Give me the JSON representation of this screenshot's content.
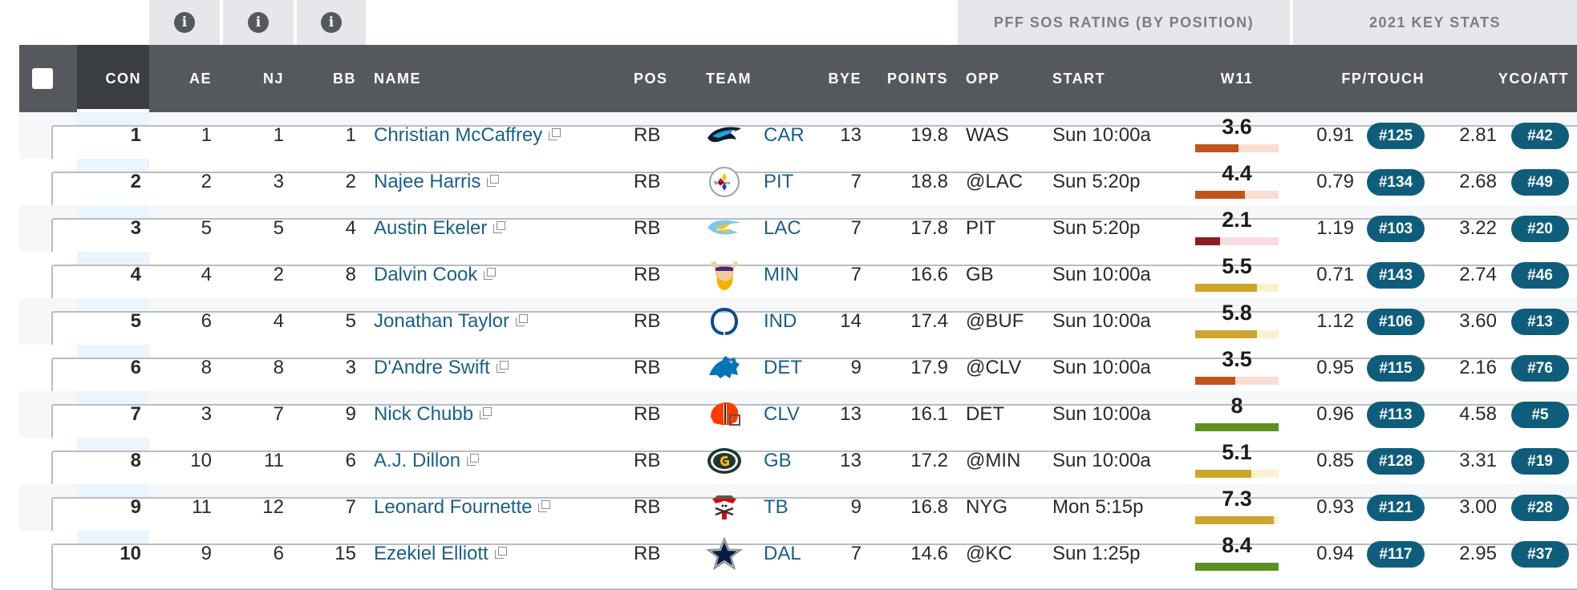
{
  "groups": {
    "sos_rating": "PFF SOS RATING (BY POSITION)",
    "key_stats": "2021 KEY STATS"
  },
  "icons": {
    "info": "i"
  },
  "headers": {
    "con": "CON",
    "ae": "AE",
    "nj": "NJ",
    "bb": "BB",
    "name": "NAME",
    "pos": "POS",
    "team": "TEAM",
    "bye": "BYE",
    "points": "POINTS",
    "opp": "OPP",
    "start": "START",
    "w11": "W11",
    "fp_touch": "FP/TOUCH",
    "yco_att": "YCO/ATT"
  },
  "colors": {
    "header_bg": "#55585d",
    "badge_bg": "#0f5d7a",
    "link": "#1b5f86",
    "sos_red": "#c0541c",
    "sos_darkred": "#8b1d24",
    "sos_yellow": "#cda52e",
    "sos_green": "#5e8f22"
  },
  "rows": [
    {
      "con": "1",
      "ae": "1",
      "nj": "1",
      "bb": "1",
      "name": "Christian McCaffrey",
      "pos": "RB",
      "team_logo": "panthers-logo",
      "team": "CAR",
      "bye": "13",
      "points": "19.8",
      "opp": "WAS",
      "start": "Sun 10:00a",
      "w11": "3.6",
      "w11_level": 0.52,
      "w11_color": "sos_red",
      "fp_touch": "0.91",
      "fp_rank": "#125",
      "yco": "2.81",
      "yco_rank": "#42"
    },
    {
      "con": "2",
      "ae": "2",
      "nj": "3",
      "bb": "2",
      "name": "Najee Harris",
      "pos": "RB",
      "team_logo": "steelers-logo",
      "team": "PIT",
      "bye": "7",
      "points": "18.8",
      "opp": "@LAC",
      "start": "Sun 5:20p",
      "w11": "4.4",
      "w11_level": 0.6,
      "w11_color": "sos_red",
      "fp_touch": "0.79",
      "fp_rank": "#134",
      "yco": "2.68",
      "yco_rank": "#49"
    },
    {
      "con": "3",
      "ae": "5",
      "nj": "5",
      "bb": "4",
      "name": "Austin Ekeler",
      "pos": "RB",
      "team_logo": "chargers-logo",
      "team": "LAC",
      "bye": "7",
      "points": "17.8",
      "opp": "PIT",
      "start": "Sun 5:20p",
      "w11": "2.1",
      "w11_level": 0.3,
      "w11_color": "sos_darkred",
      "fp_touch": "1.19",
      "fp_rank": "#103",
      "yco": "3.22",
      "yco_rank": "#20"
    },
    {
      "con": "4",
      "ae": "4",
      "nj": "2",
      "bb": "8",
      "name": "Dalvin Cook",
      "pos": "RB",
      "team_logo": "vikings-logo",
      "team": "MIN",
      "bye": "7",
      "points": "16.6",
      "opp": "GB",
      "start": "Sun 10:00a",
      "w11": "5.5",
      "w11_level": 0.74,
      "w11_color": "sos_yellow",
      "fp_touch": "0.71",
      "fp_rank": "#143",
      "yco": "2.74",
      "yco_rank": "#46"
    },
    {
      "con": "5",
      "ae": "6",
      "nj": "4",
      "bb": "5",
      "name": "Jonathan Taylor",
      "pos": "RB",
      "team_logo": "colts-logo",
      "team": "IND",
      "bye": "14",
      "points": "17.4",
      "opp": "@BUF",
      "start": "Sun 10:00a",
      "w11": "5.8",
      "w11_level": 0.74,
      "w11_color": "sos_yellow",
      "fp_touch": "1.12",
      "fp_rank": "#106",
      "yco": "3.60",
      "yco_rank": "#13"
    },
    {
      "con": "6",
      "ae": "8",
      "nj": "8",
      "bb": "3",
      "name": "D'Andre Swift",
      "pos": "RB",
      "team_logo": "lions-logo",
      "team": "DET",
      "bye": "9",
      "points": "17.9",
      "opp": "@CLV",
      "start": "Sun 10:00a",
      "w11": "3.5",
      "w11_level": 0.48,
      "w11_color": "sos_red",
      "fp_touch": "0.95",
      "fp_rank": "#115",
      "yco": "2.16",
      "yco_rank": "#76"
    },
    {
      "con": "7",
      "ae": "3",
      "nj": "7",
      "bb": "9",
      "name": "Nick Chubb",
      "pos": "RB",
      "team_logo": "browns-logo",
      "team": "CLV",
      "bye": "13",
      "points": "16.1",
      "opp": "DET",
      "start": "Sun 10:00a",
      "w11": "8",
      "w11_level": 1.0,
      "w11_color": "sos_green",
      "fp_touch": "0.96",
      "fp_rank": "#113",
      "yco": "4.58",
      "yco_rank": "#5"
    },
    {
      "con": "8",
      "ae": "10",
      "nj": "11",
      "bb": "6",
      "name": "A.J. Dillon",
      "pos": "RB",
      "team_logo": "packers-logo",
      "team": "GB",
      "bye": "13",
      "points": "17.2",
      "opp": "@MIN",
      "start": "Sun 10:00a",
      "w11": "5.1",
      "w11_level": 0.67,
      "w11_color": "sos_yellow",
      "fp_touch": "0.85",
      "fp_rank": "#128",
      "yco": "3.31",
      "yco_rank": "#19"
    },
    {
      "con": "9",
      "ae": "11",
      "nj": "12",
      "bb": "7",
      "name": "Leonard Fournette",
      "pos": "RB",
      "team_logo": "buccaneers-logo",
      "team": "TB",
      "bye": "9",
      "points": "16.8",
      "opp": "NYG",
      "start": "Mon 5:15p",
      "w11": "7.3",
      "w11_level": 0.94,
      "w11_color": "sos_yellow",
      "fp_touch": "0.93",
      "fp_rank": "#121",
      "yco": "3.00",
      "yco_rank": "#28"
    },
    {
      "con": "10",
      "ae": "9",
      "nj": "6",
      "bb": "15",
      "name": "Ezekiel Elliott",
      "pos": "RB",
      "team_logo": "cowboys-logo",
      "team": "DAL",
      "bye": "7",
      "points": "14.6",
      "opp": "@KC",
      "start": "Sun 1:25p",
      "w11": "8.4",
      "w11_level": 1.0,
      "w11_color": "sos_green",
      "fp_touch": "0.94",
      "fp_rank": "#117",
      "yco": "2.95",
      "yco_rank": "#37"
    }
  ]
}
